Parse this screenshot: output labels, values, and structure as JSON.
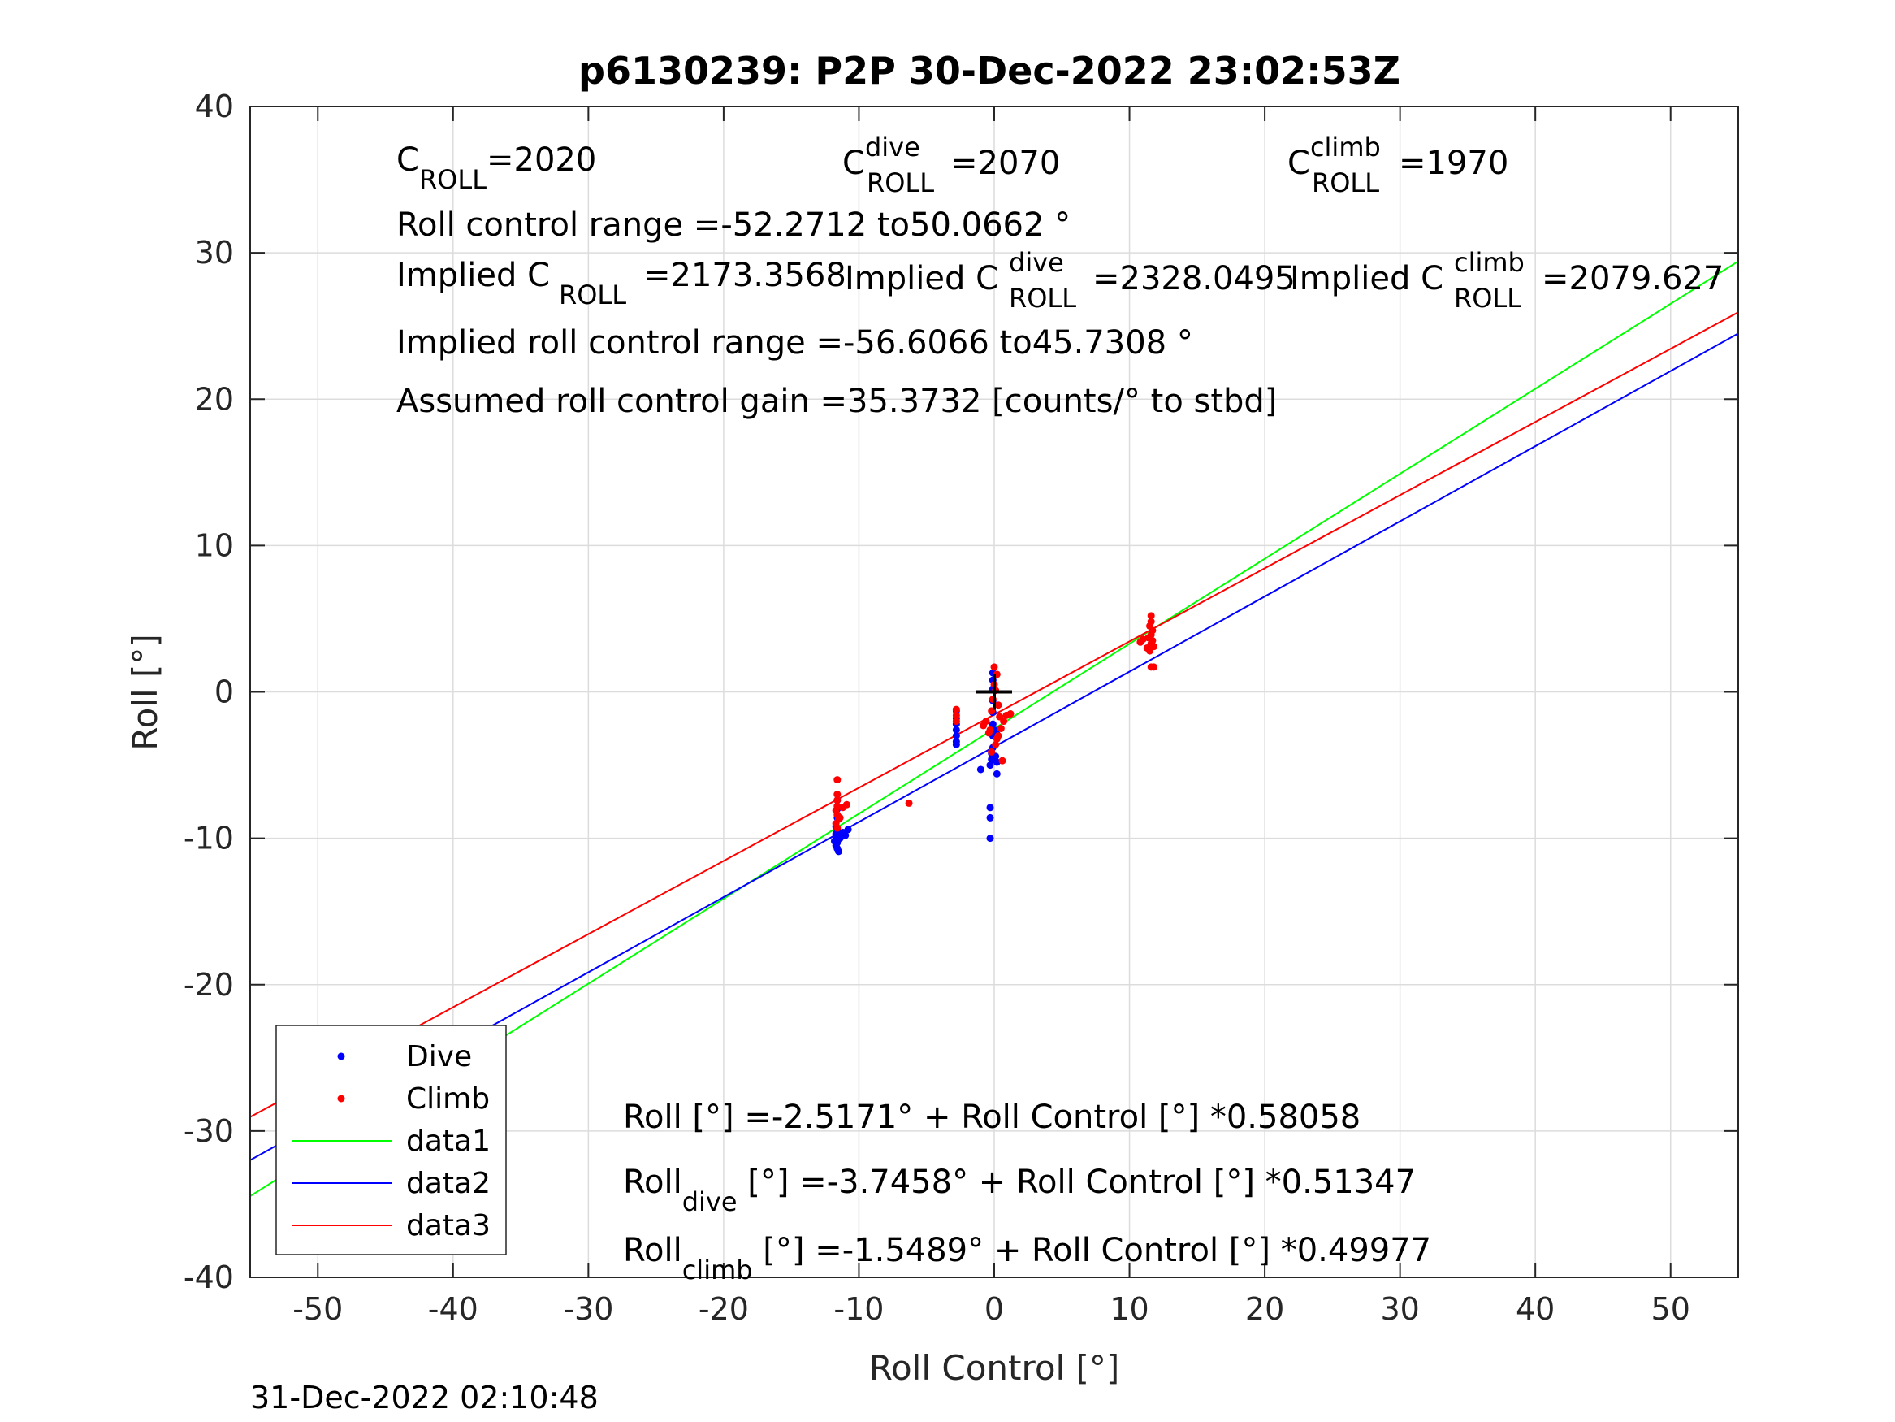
{
  "chart_data": {
    "type": "scatter",
    "title": "p6130239: P2P 30-Dec-2022 23:02:53Z",
    "xlabel": "Roll Control [°]",
    "ylabel": "Roll [°]",
    "xlim": [
      -55,
      55
    ],
    "ylim": [
      -40,
      40
    ],
    "xticks": [
      -50,
      -40,
      -30,
      -20,
      -10,
      0,
      10,
      20,
      30,
      40,
      50
    ],
    "yticks": [
      -40,
      -30,
      -20,
      -10,
      0,
      10,
      20,
      30,
      40
    ],
    "xtick_labels": [
      "-50",
      "-40",
      "-30",
      "-20",
      "-10",
      "0",
      "10",
      "20",
      "30",
      "40",
      "50"
    ],
    "ytick_labels": [
      "-40",
      "-30",
      "-20",
      "-10",
      "0",
      "10",
      "20",
      "30",
      "40"
    ],
    "grid": true,
    "legend_position": "bottom-left",
    "legend": [
      "Dive",
      "Climb",
      "data1",
      "data2",
      "data3"
    ],
    "series": [
      {
        "name": "Dive",
        "kind": "points",
        "color": "#0000ff",
        "points": [
          [
            -11.6,
            -7.4
          ],
          [
            -11.6,
            -8.0
          ],
          [
            -11.6,
            -8.6
          ],
          [
            -11.7,
            -9.2
          ],
          [
            -11.6,
            -9.5
          ],
          [
            -11.7,
            -9.7
          ],
          [
            -11.6,
            -9.9
          ],
          [
            -11.7,
            -10.1
          ],
          [
            -11.6,
            -10.3
          ],
          [
            -11.7,
            -10.5
          ],
          [
            -11.6,
            -10.7
          ],
          [
            -11.5,
            -10.9
          ],
          [
            -11.2,
            -9.6
          ],
          [
            -11.0,
            -9.8
          ],
          [
            -10.8,
            -9.4
          ],
          [
            -11.4,
            -10.0
          ],
          [
            -11.8,
            -10.2
          ],
          [
            -2.8,
            -1.3
          ],
          [
            -2.8,
            -1.8
          ],
          [
            -2.8,
            -2.2
          ],
          [
            -2.8,
            -2.6
          ],
          [
            -2.8,
            -3.0
          ],
          [
            -2.8,
            -3.4
          ],
          [
            -2.8,
            -3.6
          ],
          [
            -0.1,
            1.3
          ],
          [
            -0.1,
            0.8
          ],
          [
            -0.1,
            0.2
          ],
          [
            -0.1,
            -0.6
          ],
          [
            -0.1,
            -1.4
          ],
          [
            -0.1,
            -2.2
          ],
          [
            -0.1,
            -3.0
          ],
          [
            -0.1,
            -3.8
          ],
          [
            -0.2,
            -4.2
          ],
          [
            -0.2,
            -4.6
          ],
          [
            -0.3,
            -5.0
          ],
          [
            0.1,
            -4.4
          ],
          [
            0.2,
            -4.8
          ],
          [
            -1.0,
            -5.3
          ],
          [
            0.2,
            -5.6
          ],
          [
            -0.3,
            -7.9
          ],
          [
            -0.3,
            -8.6
          ],
          [
            -0.3,
            -10.0
          ],
          [
            0.0,
            -2.6
          ],
          [
            0.2,
            -2.9
          ]
        ]
      },
      {
        "name": "Climb",
        "kind": "points",
        "color": "#ff0000",
        "points": [
          [
            -11.6,
            -6.0
          ],
          [
            -11.6,
            -7.0
          ],
          [
            -11.6,
            -7.4
          ],
          [
            -11.6,
            -7.8
          ],
          [
            -11.7,
            -8.1
          ],
          [
            -11.6,
            -8.4
          ],
          [
            -11.5,
            -8.7
          ],
          [
            -11.7,
            -9.0
          ],
          [
            -11.6,
            -9.3
          ],
          [
            -11.2,
            -7.9
          ],
          [
            -10.9,
            -7.7
          ],
          [
            -11.4,
            -8.6
          ],
          [
            -6.3,
            -7.6
          ],
          [
            -2.8,
            -1.2
          ],
          [
            -2.8,
            -1.6
          ],
          [
            -2.8,
            -2.0
          ],
          [
            0.0,
            1.7
          ],
          [
            0.2,
            1.2
          ],
          [
            0.0,
            0.5
          ],
          [
            0.1,
            0.1
          ],
          [
            -0.1,
            -0.5
          ],
          [
            0.3,
            -0.9
          ],
          [
            -0.2,
            -1.3
          ],
          [
            0.4,
            -1.7
          ],
          [
            -0.6,
            -2.0
          ],
          [
            -0.8,
            -2.3
          ],
          [
            0.5,
            -2.5
          ],
          [
            -0.4,
            -2.8
          ],
          [
            0.2,
            -3.2
          ],
          [
            0.1,
            -3.6
          ],
          [
            -0.2,
            -4.1
          ],
          [
            0.6,
            -4.7
          ],
          [
            0.9,
            -1.6
          ],
          [
            1.2,
            -1.5
          ],
          [
            0.7,
            -2.0
          ],
          [
            -0.3,
            -2.6
          ],
          [
            0.3,
            -3.0
          ],
          [
            11.6,
            5.2
          ],
          [
            11.6,
            4.8
          ],
          [
            11.5,
            4.5
          ],
          [
            11.7,
            4.2
          ],
          [
            11.6,
            3.9
          ],
          [
            11.4,
            3.7
          ],
          [
            11.7,
            3.5
          ],
          [
            11.6,
            3.3
          ],
          [
            11.3,
            3.0
          ],
          [
            11.8,
            3.1
          ],
          [
            11.0,
            3.6
          ],
          [
            10.8,
            3.4
          ],
          [
            11.5,
            2.8
          ],
          [
            11.6,
            1.7
          ],
          [
            11.8,
            1.7
          ]
        ]
      },
      {
        "name": "data1",
        "kind": "line",
        "color": "#00ff00",
        "x": [
          -55,
          55
        ],
        "y": [
          -34.45,
          29.42
        ]
      },
      {
        "name": "data2",
        "kind": "line",
        "color": "#0000ff",
        "x": [
          -55,
          55
        ],
        "y": [
          -31.99,
          24.49
        ]
      },
      {
        "name": "data3",
        "kind": "line",
        "color": "#ff0000",
        "x": [
          -55,
          55
        ],
        "y": [
          -29.04,
          25.94
        ]
      }
    ],
    "marker": {
      "x": 0,
      "y": 0,
      "color": "#000000"
    }
  },
  "annotations": {
    "croll": {
      "main": "C",
      "sub": "ROLL",
      "val": "=2020"
    },
    "croll_dive": {
      "main": "C",
      "sup": "dive",
      "sub": "ROLL",
      "val": "=2070"
    },
    "croll_climb": {
      "main": "C",
      "sup": "climb",
      "sub": "ROLL",
      "val": "=1970"
    },
    "range": "Roll control range =-52.2712 to50.0662 °",
    "implied": {
      "pre": "Implied C",
      "sub": "ROLL",
      "val": "=2173.3568"
    },
    "implied_dive": {
      "pre": "Implied C",
      "sup": "dive",
      "sub": "ROLL",
      "val": "=2328.0495"
    },
    "implied_climb": {
      "pre": "Implied C",
      "sup": "climb",
      "sub": "ROLL",
      "val": "=2079.627"
    },
    "implied_range": "Implied roll control range =-56.6066 to45.7308 °",
    "gain": "Assumed roll control gain =35.3732 [counts/° to stbd]",
    "eq": "Roll [°] =-2.5171° + Roll Control [°] *0.58058",
    "eq_dive": {
      "pre": "Roll",
      "sub": "dive",
      "post": " [°] =-3.7458° + Roll Control [°] *0.51347"
    },
    "eq_climb": {
      "pre": "Roll",
      "sub": "climb",
      "post": " [°] =-1.5489° + Roll Control [°] *0.49977"
    }
  },
  "footer": "31-Dec-2022 02:10:48"
}
